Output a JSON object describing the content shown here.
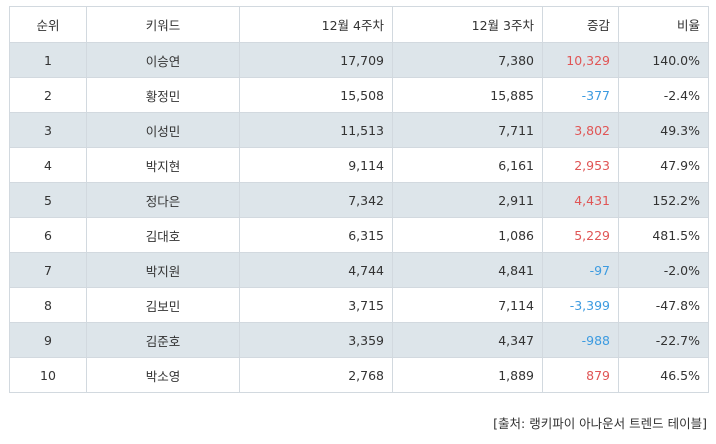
{
  "headers": {
    "rank": "순위",
    "keyword": "키워드",
    "week4": "12월 4주차",
    "week3": "12월 3주차",
    "change": "증감",
    "ratio": "비율"
  },
  "rows": [
    {
      "rank": "1",
      "keyword": "이승연",
      "week4": "17,709",
      "week3": "7,380",
      "change": "10,329",
      "ratio": "140.0%"
    },
    {
      "rank": "2",
      "keyword": "황정민",
      "week4": "15,508",
      "week3": "15,885",
      "change": "-377",
      "ratio": "-2.4%"
    },
    {
      "rank": "3",
      "keyword": "이성민",
      "week4": "11,513",
      "week3": "7,711",
      "change": "3,802",
      "ratio": "49.3%"
    },
    {
      "rank": "4",
      "keyword": "박지현",
      "week4": "9,114",
      "week3": "6,161",
      "change": "2,953",
      "ratio": "47.9%"
    },
    {
      "rank": "5",
      "keyword": "정다은",
      "week4": "7,342",
      "week3": "2,911",
      "change": "4,431",
      "ratio": "152.2%"
    },
    {
      "rank": "6",
      "keyword": "김대호",
      "week4": "6,315",
      "week3": "1,086",
      "change": "5,229",
      "ratio": "481.5%"
    },
    {
      "rank": "7",
      "keyword": "박지원",
      "week4": "4,744",
      "week3": "4,841",
      "change": "-97",
      "ratio": "-2.0%"
    },
    {
      "rank": "8",
      "keyword": "김보민",
      "week4": "3,715",
      "week3": "7,114",
      "change": "-3,399",
      "ratio": "-47.8%"
    },
    {
      "rank": "9",
      "keyword": "김준호",
      "week4": "3,359",
      "week3": "4,347",
      "change": "-988",
      "ratio": "-22.7%"
    },
    {
      "rank": "10",
      "keyword": "박소영",
      "week4": "2,768",
      "week3": "1,889",
      "change": "879",
      "ratio": "46.5%"
    }
  ],
  "source": "[출처: 랭키파이 아나운서 트렌드 테이블]",
  "colors": {
    "positive": "#e05555",
    "negative": "#3d9be0",
    "stripe": "#dde5ea",
    "border": "#d2d9df"
  }
}
